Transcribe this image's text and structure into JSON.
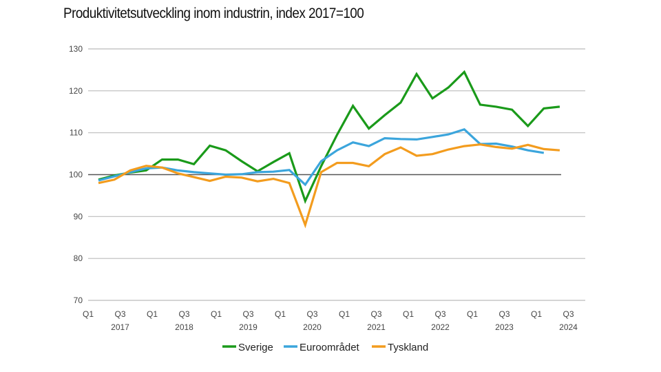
{
  "chart_data": {
    "type": "line",
    "title": "Produktivitetsutveckling inom industrin, index 2017=100",
    "xlabel": "",
    "ylabel": "",
    "ylim": [
      70,
      130
    ],
    "yticks": [
      70,
      80,
      90,
      100,
      110,
      120,
      130
    ],
    "xtick_labels": [
      {
        "q": "Q1",
        "year": ""
      },
      {
        "q": "Q3",
        "year": "2017"
      },
      {
        "q": "Q1",
        "year": ""
      },
      {
        "q": "Q3",
        "year": "2018"
      },
      {
        "q": "Q1",
        "year": ""
      },
      {
        "q": "Q3",
        "year": "2019"
      },
      {
        "q": "Q1",
        "year": ""
      },
      {
        "q": "Q3",
        "year": "2020"
      },
      {
        "q": "Q1",
        "year": ""
      },
      {
        "q": "Q3",
        "year": "2021"
      },
      {
        "q": "Q1",
        "year": ""
      },
      {
        "q": "Q3",
        "year": "2022"
      },
      {
        "q": "Q1",
        "year": ""
      },
      {
        "q": "Q3",
        "year": "2023"
      },
      {
        "q": "Q1",
        "year": ""
      },
      {
        "q": "Q3",
        "year": "2024"
      }
    ],
    "grid": true,
    "legend_position": "bottom",
    "series": [
      {
        "name": "Sverige",
        "color": "#1a9a1a",
        "values": [
          98.8,
          99.8,
          100.5,
          101,
          103.6,
          103.6,
          102.5,
          106.9,
          105.8,
          103.2,
          100.8,
          103,
          105.1,
          93.7,
          102,
          109.5,
          116.4,
          111,
          114.2,
          117.2,
          124,
          118.2,
          120.8,
          124.5,
          116.7,
          116.2,
          115.5,
          111.6,
          115.8,
          116.2
        ]
      },
      {
        "name": "Euroområdet",
        "color": "#3ba5dc",
        "values": [
          98.6,
          99.6,
          100.6,
          101.5,
          101.7,
          101,
          100.6,
          100.3,
          100,
          100.1,
          100.6,
          100.7,
          101.1,
          97.6,
          103.2,
          105.8,
          107.7,
          106.8,
          108.7,
          108.5,
          108.4,
          109,
          109.6,
          110.8,
          107.3,
          107.4,
          106.7,
          105.8,
          105.2
        ]
      },
      {
        "name": "Tyskland",
        "color": "#f39c1e",
        "values": [
          98,
          98.8,
          101,
          102.1,
          101.7,
          100.3,
          99.4,
          98.5,
          99.5,
          99.3,
          98.4,
          99,
          98,
          88,
          100.6,
          102.8,
          102.8,
          102,
          104.9,
          106.5,
          104.5,
          104.9,
          106,
          106.8,
          107.2,
          106.6,
          106.2,
          107.1,
          106.1,
          105.8
        ]
      }
    ]
  }
}
